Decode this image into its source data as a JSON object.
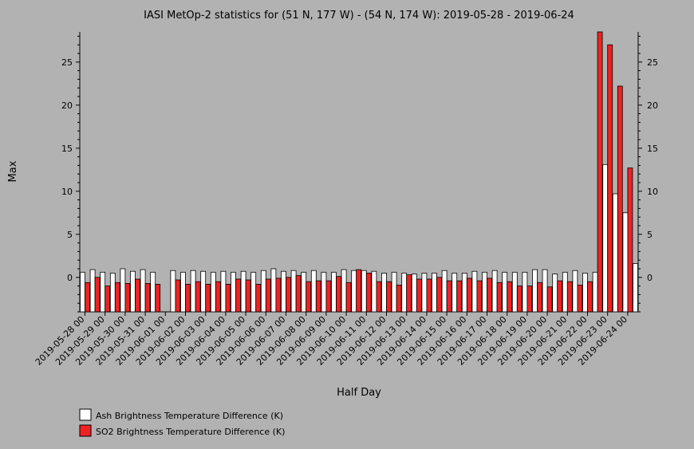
{
  "chart_data": {
    "type": "bar",
    "title": "IASI MetOp-2 statistics for (51 N, 177 W) - (54 N, 174 W): 2019-05-28 - 2019-06-24",
    "xlabel": "Half Day",
    "ylabel": "Max",
    "ylim": [
      -4,
      28.5
    ],
    "y_ticks": [
      0,
      5,
      10,
      15,
      20,
      25
    ],
    "grid": false,
    "legend_position": "bottom-left",
    "x_tick_labels": [
      "2019-05-28 00",
      "2019-05-29 00",
      "2019-05-30 00",
      "2019-05-31 00",
      "2019-06-01 00",
      "2019-06-02 00",
      "2019-06-03 00",
      "2019-06-04 00",
      "2019-06-05 00",
      "2019-06-06 00",
      "2019-06-07 00",
      "2019-06-08 00",
      "2019-06-09 00",
      "2019-06-10 00",
      "2019-06-11 00",
      "2019-06-12 00",
      "2019-06-13 00",
      "2019-06-14 00",
      "2019-06-15 00",
      "2019-06-16 00",
      "2019-06-17 00",
      "2019-06-18 00",
      "2019-06-19 00",
      "2019-06-20 00",
      "2019-06-21 00",
      "2019-06-22 00",
      "2019-06-23 00",
      "2019-06-24 00"
    ],
    "series": [
      {
        "name": "Ash Brightness Temperature Difference (K)",
        "color": "#ffffff",
        "values": [
          0.6,
          0.9,
          0.6,
          0.5,
          1.0,
          0.7,
          0.9,
          0.6,
          null,
          0.8,
          0.6,
          0.8,
          0.7,
          0.6,
          0.7,
          0.6,
          0.7,
          0.6,
          0.8,
          1.0,
          0.7,
          0.8,
          0.6,
          0.8,
          0.6,
          0.6,
          0.9,
          0.8,
          0.8,
          0.7,
          0.5,
          0.6,
          0.5,
          0.4,
          0.5,
          0.5,
          0.8,
          0.5,
          0.5,
          0.7,
          0.6,
          0.8,
          0.6,
          0.6,
          0.6,
          0.9,
          0.9,
          0.4,
          0.6,
          0.8,
          0.5,
          0.6,
          13.1,
          9.7,
          7.5,
          1.6
        ]
      },
      {
        "name": "SO2 Brightness Temperature Difference (K)",
        "color": "#ee2222",
        "values": [
          -0.6,
          0.0,
          -1.0,
          -0.6,
          -0.7,
          -0.2,
          -0.7,
          -0.8,
          null,
          -0.3,
          -0.8,
          -0.5,
          -0.8,
          -0.5,
          -0.8,
          -0.2,
          -0.3,
          -0.8,
          -0.2,
          -0.1,
          0.0,
          0.2,
          -0.5,
          -0.4,
          -0.4,
          0.1,
          -0.6,
          0.9,
          0.5,
          -0.5,
          -0.5,
          -0.9,
          0.3,
          -0.2,
          -0.2,
          0.0,
          -0.4,
          -0.4,
          -0.1,
          -0.4,
          -0.1,
          -0.6,
          -0.5,
          -1.0,
          -1.0,
          -0.6,
          -1.1,
          -0.4,
          -0.5,
          -0.9,
          -0.5,
          28.5,
          27.0,
          22.2,
          12.7,
          null
        ]
      }
    ]
  }
}
